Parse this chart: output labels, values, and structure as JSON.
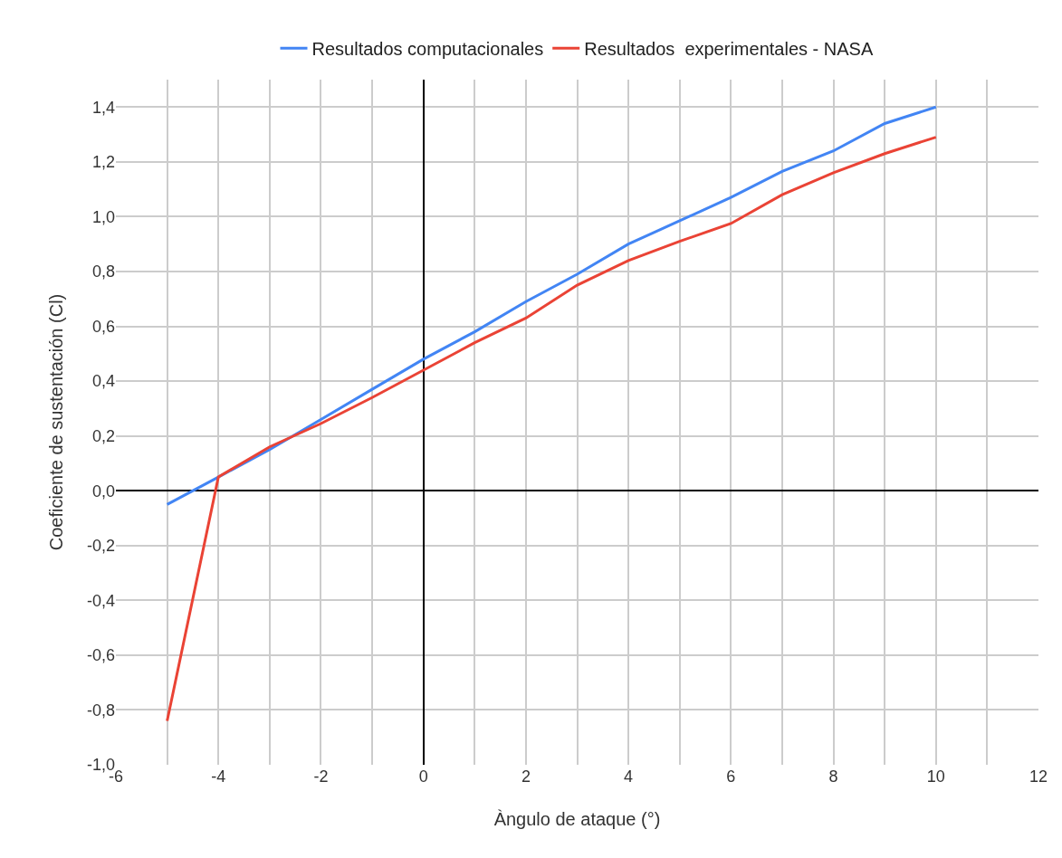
{
  "chart_data": {
    "type": "line",
    "xlabel": "Àngulo de ataque (°)",
    "ylabel": "Coeficiente de sustentación (Cl)",
    "x": [
      -5,
      -4,
      -3,
      -2,
      -1,
      0,
      1,
      2,
      3,
      4,
      5,
      6,
      7,
      8,
      9,
      10
    ],
    "series": [
      {
        "name": "Resultados computacionales",
        "color": "#4285f4",
        "values": [
          -0.05,
          0.05,
          0.15,
          0.26,
          0.37,
          0.48,
          0.58,
          0.69,
          0.79,
          0.9,
          0.985,
          1.07,
          1.165,
          1.24,
          1.34,
          1.4
        ]
      },
      {
        "name": "Resultados  experimentales - NASA",
        "color": "#ea4335",
        "values": [
          -0.84,
          0.05,
          0.16,
          0.245,
          0.34,
          0.44,
          0.54,
          0.63,
          0.75,
          0.84,
          0.91,
          0.975,
          1.08,
          1.16,
          1.23,
          1.29
        ]
      }
    ],
    "xlim": [
      -6,
      12
    ],
    "xticks": [
      -6,
      {
        "value": -5,
        "label": null
      },
      -4,
      {
        "value": -3,
        "label": null
      },
      -2,
      {
        "value": -1,
        "label": null
      },
      0,
      {
        "value": 1,
        "label": null
      },
      2,
      {
        "value": 3,
        "label": null
      },
      4,
      {
        "value": 5,
        "label": null
      },
      6,
      {
        "value": 7,
        "label": null
      },
      8,
      {
        "value": 9,
        "label": null
      },
      10,
      {
        "value": 11,
        "label": null
      },
      12
    ],
    "ylim": [
      -1.0,
      1.5
    ],
    "yticks": [
      {
        "value": -1.0,
        "label": "-1,0"
      },
      {
        "value": -0.8,
        "label": "-0,8"
      },
      {
        "value": -0.6,
        "label": "-0,6"
      },
      {
        "value": -0.4,
        "label": "-0,4"
      },
      {
        "value": -0.2,
        "label": "-0,2"
      },
      {
        "value": 0,
        "label": "0,0"
      },
      {
        "value": 0.2,
        "label": "0,2"
      },
      {
        "value": 0.4,
        "label": "0,4"
      },
      {
        "value": 0.6,
        "label": "0,6"
      },
      {
        "value": 0.8,
        "label": "0,8"
      },
      {
        "value": 1.0,
        "label": "1,0"
      },
      {
        "value": 1.2,
        "label": "1,2"
      },
      {
        "value": 1.4,
        "label": "1,4"
      }
    ],
    "grid": true,
    "legend": "top",
    "marker": "none",
    "line_style": "solid"
  }
}
